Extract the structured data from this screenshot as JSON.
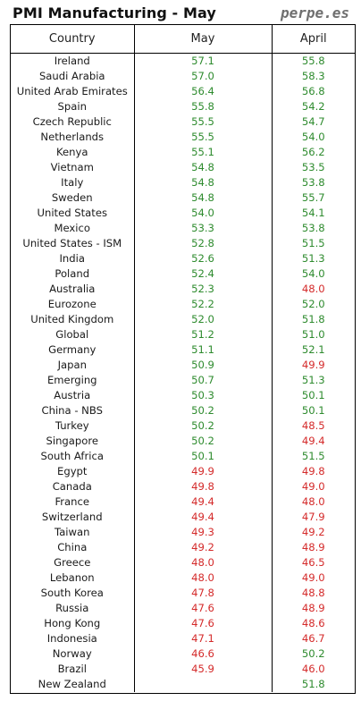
{
  "title": "PMI Manufacturing - May",
  "brand": "perpe.es",
  "colors": {
    "above_50": "#2e8b2e",
    "below_50": "#d42a2a"
  },
  "headers": [
    "Country",
    "May",
    "April"
  ],
  "rows": [
    {
      "country": "Ireland",
      "may": "57.1",
      "april": "55.8"
    },
    {
      "country": "Saudi Arabia",
      "may": "57.0",
      "april": "58.3"
    },
    {
      "country": "United Arab Emirates",
      "may": "56.4",
      "april": "56.8"
    },
    {
      "country": "Spain",
      "may": "55.8",
      "april": "54.2"
    },
    {
      "country": "Czech Republic",
      "may": "55.5",
      "april": "54.7"
    },
    {
      "country": "Netherlands",
      "may": "55.5",
      "april": "54.0"
    },
    {
      "country": "Kenya",
      "may": "55.1",
      "april": "56.2"
    },
    {
      "country": "Vietnam",
      "may": "54.8",
      "april": "53.5"
    },
    {
      "country": "Italy",
      "may": "54.8",
      "april": "53.8"
    },
    {
      "country": "Sweden",
      "may": "54.8",
      "april": "55.7"
    },
    {
      "country": "United States",
      "may": "54.0",
      "april": "54.1"
    },
    {
      "country": "Mexico",
      "may": "53.3",
      "april": "53.8"
    },
    {
      "country": "United States - ISM",
      "may": "52.8",
      "april": "51.5"
    },
    {
      "country": "India",
      "may": "52.6",
      "april": "51.3"
    },
    {
      "country": "Poland",
      "may": "52.4",
      "april": "54.0"
    },
    {
      "country": "Australia",
      "may": "52.3",
      "april": "48.0"
    },
    {
      "country": "Eurozone",
      "may": "52.2",
      "april": "52.0"
    },
    {
      "country": "United Kingdom",
      "may": "52.0",
      "april": "51.8"
    },
    {
      "country": "Global",
      "may": "51.2",
      "april": "51.0"
    },
    {
      "country": "Germany",
      "may": "51.1",
      "april": "52.1"
    },
    {
      "country": "Japan",
      "may": "50.9",
      "april": "49.9"
    },
    {
      "country": "Emerging",
      "may": "50.7",
      "april": "51.3"
    },
    {
      "country": "Austria",
      "may": "50.3",
      "april": "50.1"
    },
    {
      "country": "China - NBS",
      "may": "50.2",
      "april": "50.1"
    },
    {
      "country": "Turkey",
      "may": "50.2",
      "april": "48.5"
    },
    {
      "country": "Singapore",
      "may": "50.2",
      "april": "49.4"
    },
    {
      "country": "South Africa",
      "may": "50.1",
      "april": "51.5"
    },
    {
      "country": "Egypt",
      "may": "49.9",
      "april": "49.8"
    },
    {
      "country": "Canada",
      "may": "49.8",
      "april": "49.0"
    },
    {
      "country": "France",
      "may": "49.4",
      "april": "48.0"
    },
    {
      "country": "Switzerland",
      "may": "49.4",
      "april": "47.9"
    },
    {
      "country": "Taiwan",
      "may": "49.3",
      "april": "49.2"
    },
    {
      "country": "China",
      "may": "49.2",
      "april": "48.9"
    },
    {
      "country": "Greece",
      "may": "48.0",
      "april": "46.5"
    },
    {
      "country": "Lebanon",
      "may": "48.0",
      "april": "49.0"
    },
    {
      "country": "South Korea",
      "may": "47.8",
      "april": "48.8"
    },
    {
      "country": "Russia",
      "may": "47.6",
      "april": "48.9"
    },
    {
      "country": "Hong Kong",
      "may": "47.6",
      "april": "48.6"
    },
    {
      "country": "Indonesia",
      "may": "47.1",
      "april": "46.7"
    },
    {
      "country": "Norway",
      "may": "46.6",
      "april": "50.2"
    },
    {
      "country": "Brazil",
      "may": "45.9",
      "april": "46.0"
    },
    {
      "country": "New Zealand",
      "may": "",
      "april": "51.8"
    }
  ]
}
